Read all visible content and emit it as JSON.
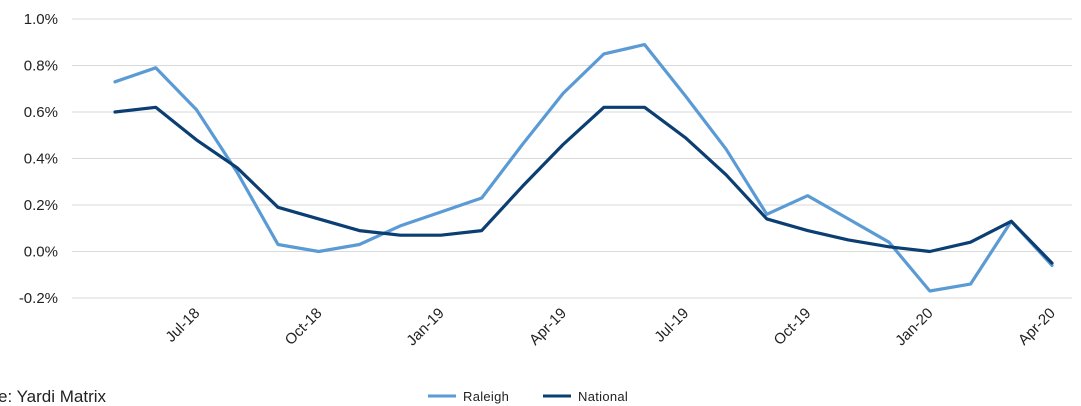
{
  "source_note": "e: Yardi Matrix",
  "colors": {
    "raleigh": "#5b9bd5",
    "national": "#0b3e72",
    "grid": "#d9d9d9"
  },
  "chart_data": {
    "type": "line",
    "title": "",
    "xlabel": "",
    "ylabel": "",
    "ylim": [
      -0.2,
      1.0
    ],
    "y_ticks": [
      "-0.2%",
      "0.0%",
      "0.2%",
      "0.4%",
      "0.6%",
      "0.8%",
      "1.0%"
    ],
    "y_tick_values": [
      -0.2,
      0.0,
      0.2,
      0.4,
      0.6,
      0.8,
      1.0
    ],
    "grid": true,
    "legend_position": "bottom",
    "categories": [
      "May-18",
      "Jun-18",
      "Jul-18",
      "Aug-18",
      "Sep-18",
      "Oct-18",
      "Nov-18",
      "Dec-18",
      "Jan-19",
      "Feb-19",
      "Mar-19",
      "Apr-19",
      "May-19",
      "Jun-19",
      "Jul-19",
      "Aug-19",
      "Sep-19",
      "Oct-19",
      "Nov-19",
      "Dec-19",
      "Jan-20",
      "Feb-20",
      "Mar-20",
      "Apr-20"
    ],
    "x_tick_labels": [
      "Jul-18",
      "Oct-18",
      "Jan-19",
      "Apr-19",
      "Jul-19",
      "Oct-19",
      "Jan-20",
      "Apr-20"
    ],
    "x_tick_indices": [
      2,
      5,
      8,
      11,
      14,
      17,
      20,
      23
    ],
    "series": [
      {
        "name": "Raleigh",
        "values": [
          0.73,
          0.79,
          0.61,
          0.34,
          0.03,
          0.0,
          0.03,
          0.11,
          0.17,
          0.23,
          0.46,
          0.68,
          0.85,
          0.89,
          0.67,
          0.44,
          0.16,
          0.24,
          0.14,
          0.04,
          -0.17,
          -0.14,
          0.13,
          -0.06
        ]
      },
      {
        "name": "National",
        "values": [
          0.6,
          0.62,
          0.48,
          0.36,
          0.19,
          0.14,
          0.09,
          0.07,
          0.07,
          0.09,
          0.28,
          0.46,
          0.62,
          0.62,
          0.49,
          0.33,
          0.14,
          0.09,
          0.05,
          0.02,
          0.0,
          0.04,
          0.13,
          -0.05
        ]
      }
    ]
  }
}
